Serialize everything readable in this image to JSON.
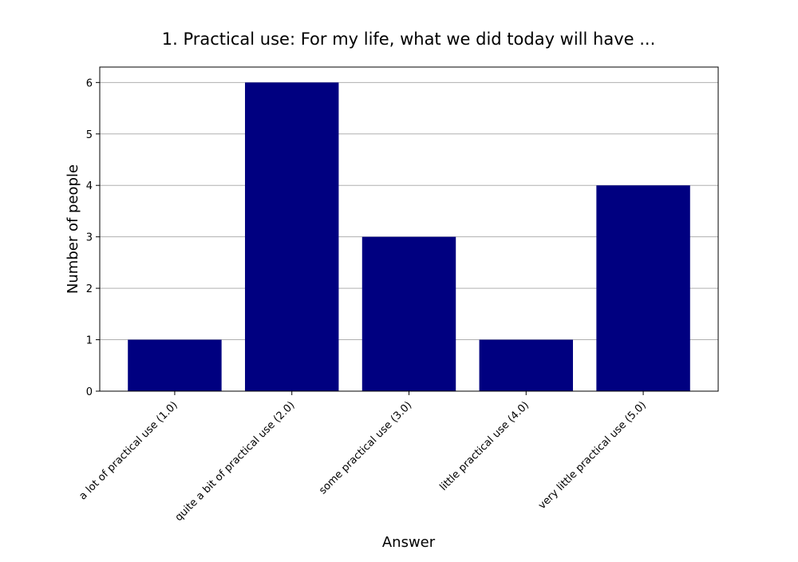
{
  "chart_data": {
    "type": "bar",
    "title": "1. Practical use: For my life, what we did today will have ...",
    "xlabel": "Answer",
    "ylabel": "Number of people",
    "categories": [
      "a lot of practical use (1.0)",
      "quite a bit of practical use (2.0)",
      "some practical use (3.0)",
      "little practical use (4.0)",
      "very little practical use (5.0)"
    ],
    "values": [
      1,
      6,
      3,
      1,
      4
    ],
    "ylim": [
      0,
      6.3
    ],
    "yticks": [
      0,
      1,
      2,
      3,
      4,
      5,
      6
    ],
    "grid": "horizontal",
    "legend": "none",
    "bar_color": "#000080",
    "grid_color": "#b0b0b0"
  }
}
